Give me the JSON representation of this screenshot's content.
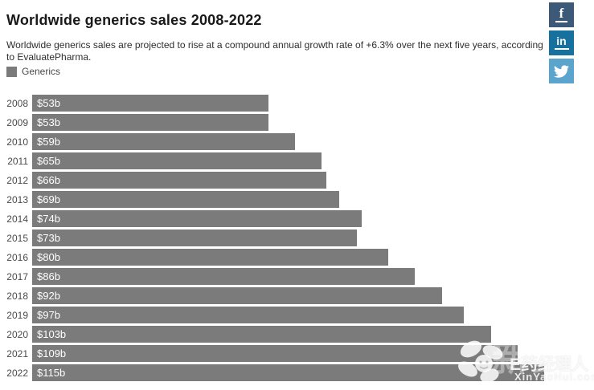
{
  "header": {
    "title": "Worldwide generics sales 2008-2022",
    "subtitle": "Worldwide generics sales are projected to rise at a compound annual growth rate of +6.3% over the next five years, according to EvaluatePharma."
  },
  "legend": {
    "label": "Generics",
    "color": "#7b7b7b"
  },
  "social": {
    "buttons": [
      {
        "name": "facebook",
        "glyph": "f",
        "color": "#3c5a78"
      },
      {
        "name": "linkedin",
        "glyph": "in",
        "color": "#17719f"
      },
      {
        "name": "twitter",
        "glyph": "twitter-bird",
        "color": "#5ba4cd"
      }
    ]
  },
  "chart_data": {
    "type": "bar",
    "orientation": "horizontal",
    "title": "Worldwide generics sales 2008-2022",
    "series_name": "Generics",
    "categories": [
      "2008",
      "2009",
      "2010",
      "2011",
      "2012",
      "2013",
      "2014",
      "2015",
      "2016",
      "2017",
      "2018",
      "2019",
      "2020",
      "2021",
      "2022"
    ],
    "values": [
      53,
      53,
      59,
      65,
      66,
      69,
      74,
      73,
      80,
      86,
      92,
      97,
      103,
      109,
      115
    ],
    "value_labels": [
      "$53b",
      "$53b",
      "$59b",
      "$65b",
      "$66b",
      "$69b",
      "$74b",
      "$73b",
      "$80b",
      "$86b",
      "$92b",
      "$97b",
      "$103b",
      "$109b",
      "$115b"
    ],
    "unit": "billion USD",
    "bar_color": "#7b7b7b",
    "xlim": [
      0,
      115
    ],
    "grid": false,
    "legend_position": "top-left",
    "value_labels_inside_bars": true
  },
  "watermark": {
    "backdrop_text": "新药汇",
    "brand_text": "E药经理人",
    "domain_text": "XinYaoHui.com"
  }
}
